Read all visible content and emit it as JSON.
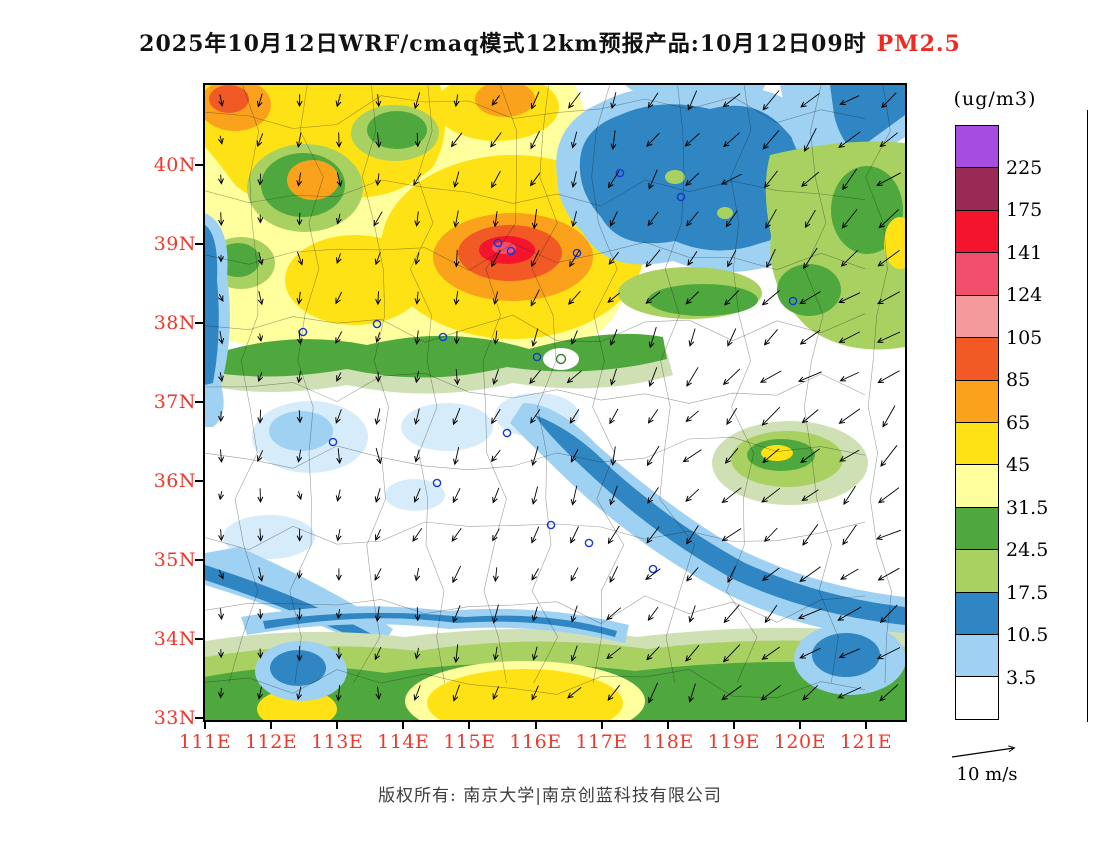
{
  "title": {
    "text": "2025年10月12日WRF/cmaq模式12km预报产品:10月12日09时",
    "pollutant": "PM2.5",
    "pollutant_color": "#ee2b20"
  },
  "axes": {
    "lat_labels": [
      "40N",
      "39N",
      "38N",
      "37N",
      "36N",
      "35N",
      "34N",
      "33N"
    ],
    "lon_labels": [
      "111E",
      "112E",
      "113E",
      "114E",
      "115E",
      "116E",
      "117E",
      "118E",
      "119E",
      "120E",
      "121E"
    ],
    "label_color": "#ef372a"
  },
  "colorbar": {
    "unit": "(ug/m3)",
    "tick_labels": [
      "225",
      "175",
      "141",
      "124",
      "105",
      "85",
      "65",
      "45",
      "31.5",
      "24.5",
      "17.5",
      "10.5",
      "3.5"
    ],
    "segment_colors_top_to_bottom": [
      "#a64ce0",
      "#992a55",
      "#f5142e",
      "#f24f6d",
      "#f59a9c",
      "#f15a24",
      "#faa21b",
      "#ffe215",
      "#ffff9e",
      "#4fa83d",
      "#a9d162",
      "#2f86c2",
      "#9fd1f2",
      "#ffffff"
    ]
  },
  "wind_legend": {
    "label": "10 m/s"
  },
  "footer": {
    "copyright": "版权所有: 南京大学|南京创蓝科技有限公司"
  },
  "chart_data": {
    "type": "heatmap",
    "title": "2025年10月12日WRF/cmaq模式12km预报产品:10月12日09时 PM2.5",
    "variable": "PM2.5",
    "unit": "ug/m3",
    "x_axis": {
      "label": "Longitude",
      "ticks": [
        "111E",
        "112E",
        "113E",
        "114E",
        "115E",
        "116E",
        "117E",
        "118E",
        "119E",
        "120E",
        "121E"
      ]
    },
    "y_axis": {
      "label": "Latitude",
      "ticks": [
        "33N",
        "34N",
        "35N",
        "36N",
        "37N",
        "38N",
        "39N",
        "40N"
      ]
    },
    "contour_levels": [
      3.5,
      10.5,
      17.5,
      24.5,
      31.5,
      45,
      65,
      85,
      105,
      124,
      141,
      175,
      225
    ],
    "legend_position": "right",
    "wind_reference_vector_mps": 10
  }
}
